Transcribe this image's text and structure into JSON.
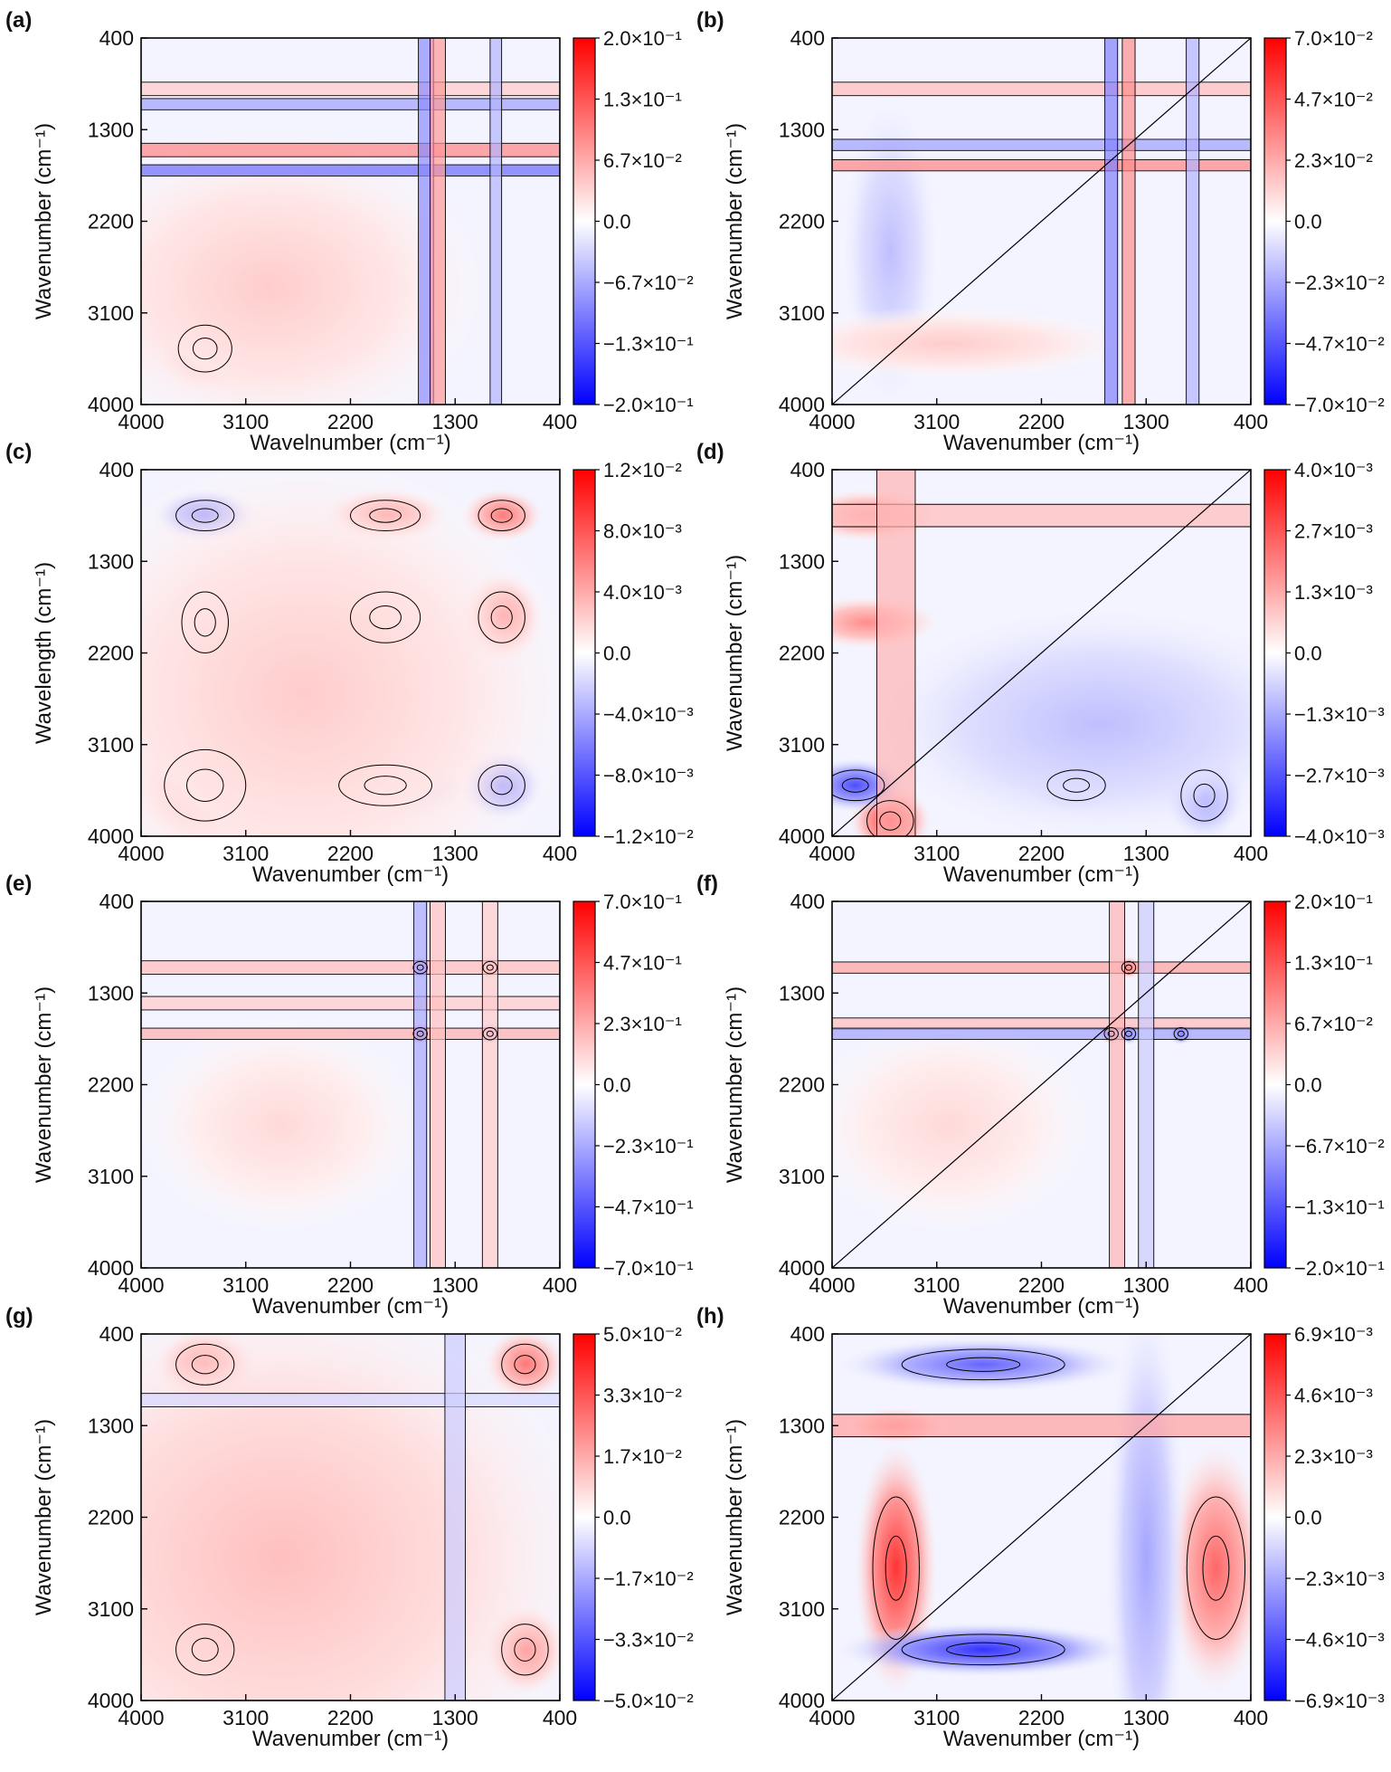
{
  "chart_data": [
    {
      "label": "(a)",
      "type": "heatmap",
      "xlabel": "Wavelnumber (cm⁻¹)",
      "ylabel": "Wavenumber (cm⁻¹)",
      "xticks": [
        "4000",
        "3100",
        "2200",
        "1300",
        "400"
      ],
      "yticks": [
        "400",
        "1300",
        "2200",
        "3100",
        "4000"
      ],
      "xlim": [
        4000,
        400
      ],
      "ylim": [
        400,
        4000
      ],
      "colorbar": [
        "2.0×10⁻¹",
        "1.3×10⁻¹",
        "6.7×10⁻²",
        "0.0",
        "−6.7×10⁻²",
        "−1.3×10⁻¹",
        "−2.0×10⁻¹"
      ],
      "hotspots": [
        {
          "x": 3450,
          "y": 3450,
          "v": 0.75,
          "sx": 230,
          "sy": 230
        },
        {
          "x": 2900,
          "y": 2850,
          "v": 0.2,
          "sx": 1100,
          "sy": 900
        }
      ],
      "xbands": [
        {
          "y": 900,
          "v": 0.2,
          "w": 60
        },
        {
          "y": 1050,
          "v": -0.35,
          "w": 50
        },
        {
          "y": 1500,
          "v": 0.45,
          "w": 60
        },
        {
          "y": 1700,
          "v": -0.55,
          "w": 50
        }
      ],
      "ybands": [
        {
          "x": 1550,
          "v": -0.45,
          "w": 60
        },
        {
          "x": 1450,
          "v": 0.4,
          "w": 60
        },
        {
          "x": 950,
          "v": -0.3,
          "w": 45
        }
      ],
      "sym": false
    },
    {
      "label": "(b)",
      "type": "heatmap",
      "xlabel": "Wavenumber (cm⁻¹)",
      "ylabel": "Wavenumber (cm⁻¹)",
      "xticks": [
        "4000",
        "3100",
        "2200",
        "1300",
        "400"
      ],
      "yticks": [
        "400",
        "1300",
        "2200",
        "3100",
        "4000"
      ],
      "xlim": [
        4000,
        400
      ],
      "ylim": [
        400,
        4000
      ],
      "colorbar": [
        "7.0×10⁻²",
        "4.7×10⁻²",
        "2.3×10⁻²",
        "0.0",
        "−2.3×10⁻²",
        "−4.7×10⁻²",
        "−7.0×10⁻²"
      ],
      "hotspots": [
        {
          "x": 3500,
          "y": 2500,
          "v": -0.25,
          "sx": 250,
          "sy": 900
        },
        {
          "x": 3000,
          "y": 3400,
          "v": 0.2,
          "sx": 900,
          "sy": 200
        }
      ],
      "xbands": [
        {
          "y": 1650,
          "v": 0.45,
          "w": 50
        },
        {
          "y": 1450,
          "v": -0.35,
          "w": 50
        },
        {
          "y": 900,
          "v": 0.25,
          "w": 60
        }
      ],
      "ybands": [
        {
          "x": 1600,
          "v": -0.5,
          "w": 50
        },
        {
          "x": 1450,
          "v": 0.45,
          "w": 50
        },
        {
          "x": 900,
          "v": -0.3,
          "w": 50
        }
      ],
      "sym": true
    },
    {
      "label": "(c)",
      "type": "heatmap",
      "xlabel": "Wavenumber (cm⁻¹)",
      "ylabel": "Wavelength (cm⁻¹)",
      "xticks": [
        "4000",
        "3100",
        "2200",
        "1300",
        "400"
      ],
      "yticks": [
        "400",
        "1300",
        "2200",
        "3100",
        "4000"
      ],
      "xlim": [
        4000,
        400
      ],
      "ylim": [
        400,
        4000
      ],
      "colorbar": [
        "1.2×10⁻²",
        "8.0×10⁻³",
        "4.0×10⁻³",
        "0.0",
        "−4.0×10⁻³",
        "−8.0×10⁻³",
        "−1.2×10⁻²"
      ],
      "hotspots": [
        {
          "x": 3450,
          "y": 3500,
          "v": 0.6,
          "sx": 350,
          "sy": 350
        },
        {
          "x": 1900,
          "y": 1850,
          "v": 0.75,
          "sx": 300,
          "sy": 250
        },
        {
          "x": 900,
          "y": 1850,
          "v": 0.6,
          "sx": 200,
          "sy": 250
        },
        {
          "x": 1900,
          "y": 850,
          "v": 0.55,
          "sx": 300,
          "sy": 150
        },
        {
          "x": 900,
          "y": 850,
          "v": 0.55,
          "sx": 200,
          "sy": 150
        },
        {
          "x": 3450,
          "y": 1900,
          "v": -0.55,
          "sx": 200,
          "sy": 300
        },
        {
          "x": 3450,
          "y": 850,
          "v": -0.5,
          "sx": 250,
          "sy": 150
        },
        {
          "x": 1900,
          "y": 3500,
          "v": -0.55,
          "sx": 400,
          "sy": 200
        },
        {
          "x": 900,
          "y": 3500,
          "v": -0.5,
          "sx": 200,
          "sy": 200
        },
        {
          "x": 2600,
          "y": 2600,
          "v": 0.2,
          "sx": 1400,
          "sy": 1400
        }
      ],
      "xbands": [],
      "ybands": [],
      "sym": false
    },
    {
      "label": "(d)",
      "type": "heatmap",
      "xlabel": "Wavenumber (cm⁻¹)",
      "ylabel": "Wavenumber (cm⁻¹)",
      "xticks": [
        "4000",
        "3100",
        "2200",
        "1300",
        "400"
      ],
      "yticks": [
        "400",
        "1300",
        "2200",
        "3100",
        "4000"
      ],
      "xlim": [
        4000,
        400
      ],
      "ylim": [
        400,
        4000
      ],
      "colorbar": [
        "4.0×10⁻³",
        "2.7×10⁻³",
        "1.3×10⁻³",
        "0.0",
        "−1.3×10⁻³",
        "−2.7×10⁻³",
        "−4.0×10⁻³"
      ],
      "hotspots": [
        {
          "x": 3500,
          "y": 3850,
          "v": 0.75,
          "sx": 200,
          "sy": 200
        },
        {
          "x": 3800,
          "y": 3500,
          "v": -0.7,
          "sx": 250,
          "sy": 150
        },
        {
          "x": 1900,
          "y": 3500,
          "v": -0.55,
          "sx": 250,
          "sy": 150
        },
        {
          "x": 800,
          "y": 3600,
          "v": -0.55,
          "sx": 200,
          "sy": 250
        },
        {
          "x": 3700,
          "y": 850,
          "v": 0.45,
          "sx": 350,
          "sy": 150
        },
        {
          "x": 3700,
          "y": 1900,
          "v": 0.45,
          "sx": 350,
          "sy": 150
        },
        {
          "x": 1700,
          "y": 2900,
          "v": -0.25,
          "sx": 1200,
          "sy": 700
        }
      ],
      "xbands": [
        {
          "y": 850,
          "v": 0.25,
          "w": 100
        }
      ],
      "ybands": [
        {
          "x": 3450,
          "v": 0.3,
          "w": 150
        }
      ],
      "sym": true
    },
    {
      "label": "(e)",
      "type": "heatmap",
      "xlabel": "Wavenumber (cm⁻¹)",
      "ylabel": "Wavenumber (cm⁻¹)",
      "xticks": [
        "4000",
        "3100",
        "2200",
        "1300",
        "400"
      ],
      "yticks": [
        "400",
        "1300",
        "2200",
        "3100",
        "4000"
      ],
      "xlim": [
        4000,
        400
      ],
      "ylim": [
        400,
        4000
      ],
      "colorbar": [
        "7.0×10⁻¹",
        "4.7×10⁻¹",
        "2.3×10⁻¹",
        "0.0",
        "−2.3×10⁻¹",
        "−4.7×10⁻¹",
        "−7.0×10⁻¹"
      ],
      "hotspots": [
        {
          "x": 1600,
          "y": 1050,
          "v": -0.75,
          "sx": 60,
          "sy": 60
        },
        {
          "x": 1000,
          "y": 1050,
          "v": 0.7,
          "sx": 60,
          "sy": 60
        },
        {
          "x": 1600,
          "y": 1700,
          "v": 0.75,
          "sx": 60,
          "sy": 60
        },
        {
          "x": 1000,
          "y": 1700,
          "v": -0.6,
          "sx": 60,
          "sy": 60
        },
        {
          "x": 2800,
          "y": 2600,
          "v": 0.15,
          "sx": 700,
          "sy": 600
        }
      ],
      "xbands": [
        {
          "y": 1050,
          "v": 0.25,
          "w": 60
        },
        {
          "y": 1400,
          "v": 0.2,
          "w": 60
        },
        {
          "y": 1700,
          "v": 0.3,
          "w": 50
        }
      ],
      "ybands": [
        {
          "x": 1600,
          "v": -0.35,
          "w": 50
        },
        {
          "x": 1450,
          "v": 0.25,
          "w": 60
        },
        {
          "x": 1000,
          "v": 0.2,
          "w": 60
        }
      ],
      "sym": false
    },
    {
      "label": "(f)",
      "type": "heatmap",
      "xlabel": "Wavenumber (cm⁻¹)",
      "ylabel": "Wavenumber (cm⁻¹)",
      "xticks": [
        "4000",
        "3100",
        "2200",
        "1300",
        "400"
      ],
      "yticks": [
        "400",
        "1300",
        "2200",
        "3100",
        "4000"
      ],
      "xlim": [
        4000,
        400
      ],
      "ylim": [
        400,
        4000
      ],
      "colorbar": [
        "2.0×10⁻¹",
        "1.3×10⁻¹",
        "6.7×10⁻²",
        "0.0",
        "−6.7×10⁻²",
        "−1.3×10⁻¹",
        "−2.0×10⁻¹"
      ],
      "hotspots": [
        {
          "x": 1450,
          "y": 1050,
          "v": 0.7,
          "sx": 60,
          "sy": 60
        },
        {
          "x": 1450,
          "y": 1700,
          "v": -0.6,
          "sx": 60,
          "sy": 60
        },
        {
          "x": 1000,
          "y": 1700,
          "v": -0.7,
          "sx": 60,
          "sy": 60
        },
        {
          "x": 1600,
          "y": 1700,
          "v": 0.65,
          "sx": 60,
          "sy": 60
        },
        {
          "x": 3000,
          "y": 2600,
          "v": 0.15,
          "sx": 700,
          "sy": 600
        }
      ],
      "xbands": [
        {
          "y": 1050,
          "v": 0.35,
          "w": 50
        },
        {
          "y": 1600,
          "v": 0.25,
          "w": 50
        },
        {
          "y": 1700,
          "v": -0.35,
          "w": 50
        }
      ],
      "ybands": [
        {
          "x": 1550,
          "v": 0.3,
          "w": 60
        },
        {
          "x": 1300,
          "v": -0.2,
          "w": 60
        }
      ],
      "sym": true
    },
    {
      "label": "(g)",
      "type": "heatmap",
      "xlabel": "Wavenumber (cm⁻¹)",
      "ylabel": "Wavenumber (cm⁻¹)",
      "xticks": [
        "4000",
        "3100",
        "2200",
        "1300",
        "400"
      ],
      "yticks": [
        "400",
        "1300",
        "2200",
        "3100",
        "4000"
      ],
      "xlim": [
        4000,
        400
      ],
      "ylim": [
        400,
        4000
      ],
      "colorbar": [
        "5.0×10⁻²",
        "3.3×10⁻²",
        "1.7×10⁻²",
        "0.0",
        "−1.7×10⁻²",
        "−3.3×10⁻²",
        "−5.0×10⁻²"
      ],
      "hotspots": [
        {
          "x": 3450,
          "y": 3500,
          "v": 0.8,
          "sx": 250,
          "sy": 250
        },
        {
          "x": 3450,
          "y": 700,
          "v": 0.6,
          "sx": 250,
          "sy": 200
        },
        {
          "x": 700,
          "y": 700,
          "v": 0.55,
          "sx": 200,
          "sy": 200
        },
        {
          "x": 700,
          "y": 3500,
          "v": 0.6,
          "sx": 200,
          "sy": 250
        },
        {
          "x": 2800,
          "y": 2600,
          "v": 0.25,
          "sx": 1600,
          "sy": 1600
        }
      ],
      "xbands": [
        {
          "y": 1050,
          "v": -0.15,
          "w": 60
        }
      ],
      "ybands": [
        {
          "x": 1300,
          "v": -0.2,
          "w": 80
        }
      ],
      "sym": false
    },
    {
      "label": "(h)",
      "type": "heatmap",
      "xlabel": "Wavenumber (cm⁻¹)",
      "ylabel": "Wavenumber (cm⁻¹)",
      "xticks": [
        "4000",
        "3100",
        "2200",
        "1300",
        "400"
      ],
      "yticks": [
        "400",
        "1300",
        "2200",
        "3100",
        "4000"
      ],
      "xlim": [
        4000,
        400
      ],
      "ylim": [
        400,
        4000
      ],
      "colorbar": [
        "6.9×10⁻³",
        "4.6×10⁻³",
        "2.3×10⁻³",
        "0.0",
        "−2.3×10⁻³",
        "−4.6×10⁻³",
        "−6.9×10⁻³"
      ],
      "hotspots": [
        {
          "x": 3450,
          "y": 2700,
          "v": 0.8,
          "sx": 200,
          "sy": 700
        },
        {
          "x": 700,
          "y": 2700,
          "v": 0.6,
          "sx": 250,
          "sy": 700
        },
        {
          "x": 2700,
          "y": 3500,
          "v": -0.8,
          "sx": 700,
          "sy": 150
        },
        {
          "x": 2700,
          "y": 700,
          "v": -0.6,
          "sx": 700,
          "sy": 150
        },
        {
          "x": 1300,
          "y": 2600,
          "v": -0.35,
          "sx": 200,
          "sy": 1500
        },
        {
          "x": 3450,
          "y": 1300,
          "v": 0.45,
          "sx": 250,
          "sy": 100
        }
      ],
      "xbands": [
        {
          "y": 1300,
          "v": 0.35,
          "w": 100
        }
      ],
      "ybands": [],
      "sym": true
    }
  ]
}
